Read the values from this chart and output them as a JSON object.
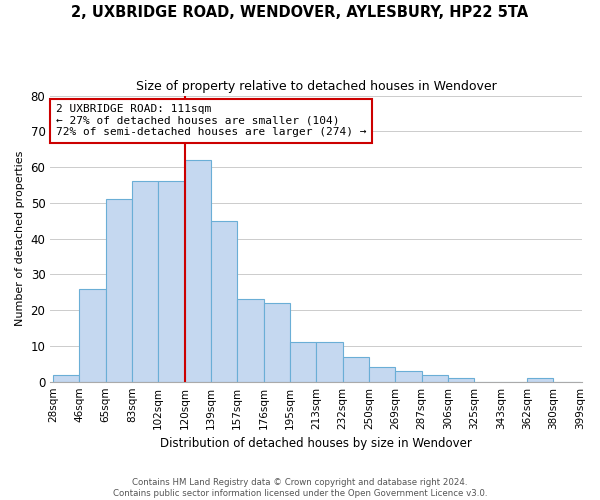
{
  "title": "2, UXBRIDGE ROAD, WENDOVER, AYLESBURY, HP22 5TA",
  "subtitle": "Size of property relative to detached houses in Wendover",
  "xlabel": "Distribution of detached houses by size in Wendover",
  "ylabel": "Number of detached properties",
  "footer_line1": "Contains HM Land Registry data © Crown copyright and database right 2024.",
  "footer_line2": "Contains public sector information licensed under the Open Government Licence v3.0.",
  "bin_labels": [
    "28sqm",
    "46sqm",
    "65sqm",
    "83sqm",
    "102sqm",
    "120sqm",
    "139sqm",
    "157sqm",
    "176sqm",
    "195sqm",
    "213sqm",
    "232sqm",
    "250sqm",
    "269sqm",
    "287sqm",
    "306sqm",
    "325sqm",
    "343sqm",
    "362sqm",
    "380sqm",
    "399sqm"
  ],
  "bar_values": [
    2,
    26,
    51,
    56,
    56,
    62,
    45,
    23,
    22,
    11,
    11,
    7,
    4,
    3,
    2,
    1,
    0,
    0,
    1,
    0
  ],
  "bar_color": "#c5d8f0",
  "bar_edge_color": "#6aaed6",
  "ylim": [
    0,
    80
  ],
  "yticks": [
    0,
    10,
    20,
    30,
    40,
    50,
    60,
    70,
    80
  ],
  "vline_bin_index": 4,
  "vline_color": "#cc0000",
  "annotation_title": "2 UXBRIDGE ROAD: 111sqm",
  "annotation_line1": "← 27% of detached houses are smaller (104)",
  "annotation_line2": "72% of semi-detached houses are larger (274) →",
  "annotation_box_color": "#ffffff",
  "annotation_box_edge": "#cc0000",
  "background_color": "#ffffff",
  "grid_color": "#cccccc"
}
